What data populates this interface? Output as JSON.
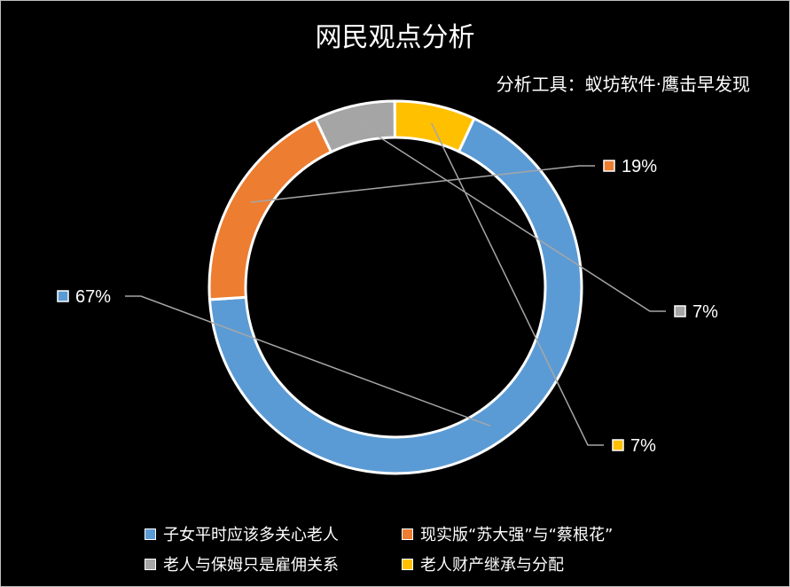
{
  "chart_data": {
    "type": "pie",
    "title": "网民观点分析",
    "subtitle": "分析工具：蚁坊软件·鹰击早发现",
    "series": [
      {
        "name": "子女平时应该多关心老人",
        "value": 67,
        "label": "67%",
        "color": "#5B9BD5"
      },
      {
        "name": "现实版“苏大强”与“蔡根花”",
        "value": 19,
        "label": "19%",
        "color": "#ED7D31"
      },
      {
        "name": "老人与保姆只是雇佣关系",
        "value": 7,
        "label": "7%",
        "color": "#A5A5A5"
      },
      {
        "name": "老人财产继承与分配",
        "value": 7,
        "label": "7%",
        "color": "#FFC000"
      }
    ],
    "legend_position": "bottom",
    "style": "donut"
  }
}
